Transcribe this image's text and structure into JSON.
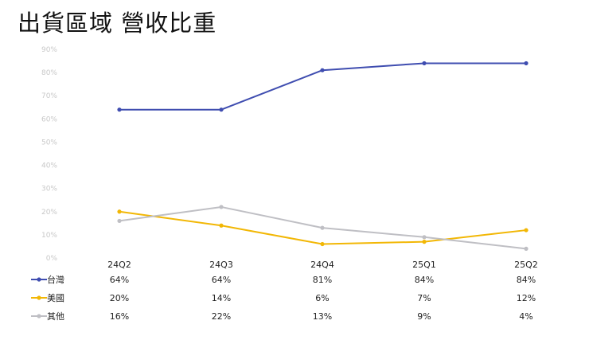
{
  "title": "出貨區域 營收比重",
  "chart_data": {
    "type": "line",
    "title": "出貨區域 營收比重",
    "categories": [
      "24Q2",
      "24Q3",
      "24Q4",
      "25Q1",
      "25Q2"
    ],
    "ylim": [
      0,
      90
    ],
    "yticks": [
      "0%",
      "10%",
      "20%",
      "30%",
      "40%",
      "50%",
      "60%",
      "70%",
      "80%",
      "90%"
    ],
    "grid": false,
    "legend": "data-table-left",
    "series": [
      {
        "name": "台灣",
        "color": "#3f4db0",
        "values": [
          64,
          64,
          81,
          84,
          84
        ],
        "labels": [
          "64%",
          "64%",
          "81%",
          "84%",
          "84%"
        ]
      },
      {
        "name": "美國",
        "color": "#f2b705",
        "values": [
          20,
          14,
          6,
          7,
          12
        ],
        "labels": [
          "20%",
          "14%",
          "6%",
          "7%",
          "12%"
        ]
      },
      {
        "name": "其他",
        "color": "#bfbfc4",
        "values": [
          16,
          22,
          13,
          9,
          4
        ],
        "labels": [
          "16%",
          "22%",
          "13%",
          "9%",
          "4%"
        ]
      }
    ]
  }
}
